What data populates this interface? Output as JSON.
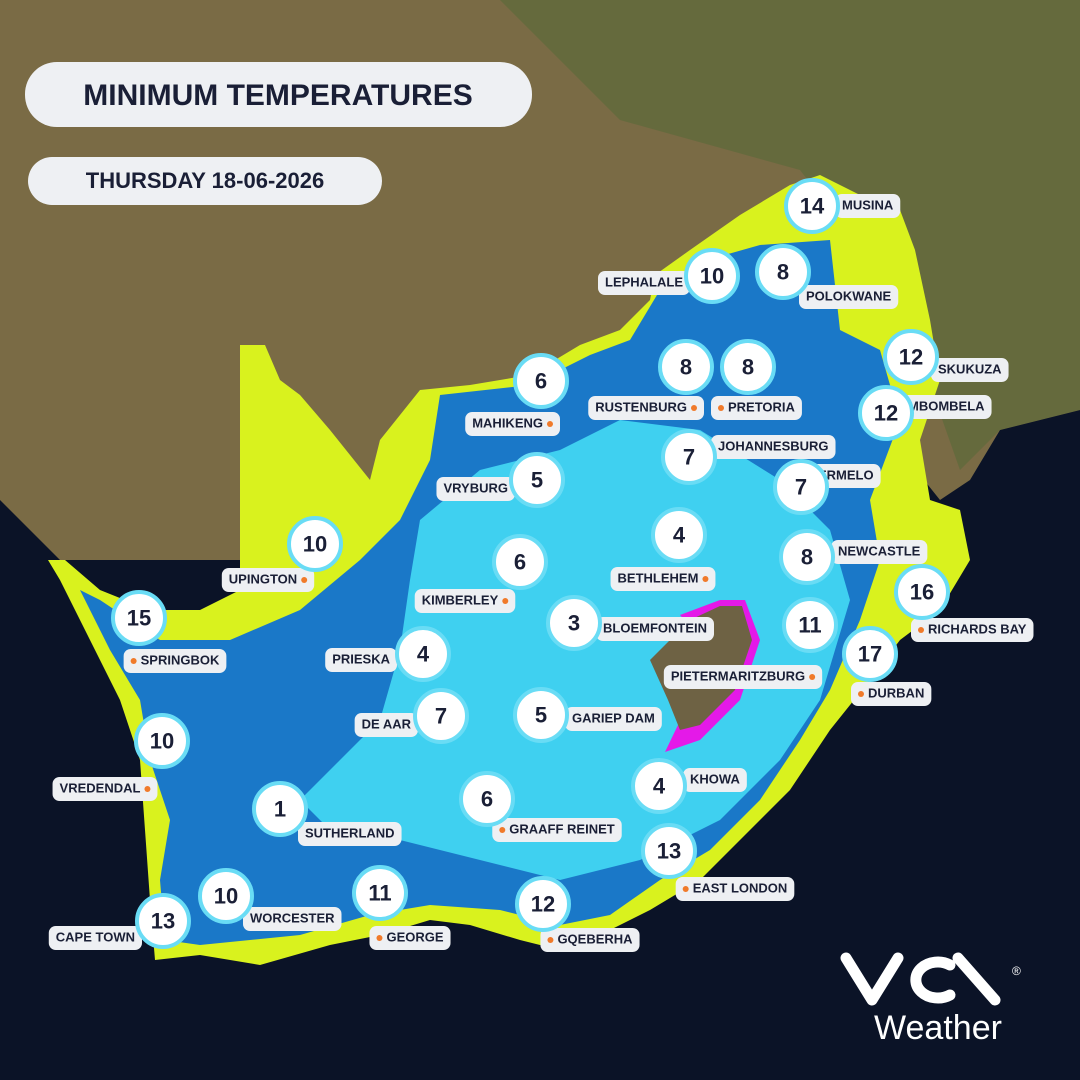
{
  "header": {
    "title": "MINIMUM TEMPERATURES",
    "date": "THURSDAY 18-06-2026"
  },
  "cities": [
    {
      "name": "MUSINA",
      "temp": 14
    },
    {
      "name": "LEPHALALE",
      "temp": 10
    },
    {
      "name": "POLOKWANE",
      "temp": 8
    },
    {
      "name": "MAHIKENG",
      "temp": 6
    },
    {
      "name": "RUSTENBURG",
      "temp": 8
    },
    {
      "name": "PRETORIA",
      "temp": 8
    },
    {
      "name": "SKUKUZA",
      "temp": 12
    },
    {
      "name": "MBOMBELA",
      "temp": 12
    },
    {
      "name": "JOHANNESBURG",
      "temp": 7
    },
    {
      "name": "ERMELO",
      "temp": 7
    },
    {
      "name": "VRYBURG",
      "temp": 5
    },
    {
      "name": "BETHLEHEM",
      "temp": 4
    },
    {
      "name": "NEWCASTLE",
      "temp": 8
    },
    {
      "name": "UPINGTON",
      "temp": 10
    },
    {
      "name": "KIMBERLEY",
      "temp": 6
    },
    {
      "name": "RICHARDS BAY",
      "temp": 16
    },
    {
      "name": "SPRINGBOK",
      "temp": 15
    },
    {
      "name": "BLOEMFONTEIN",
      "temp": 3
    },
    {
      "name": "PIETERMARITZBURG",
      "temp": 11
    },
    {
      "name": "DURBAN",
      "temp": 17
    },
    {
      "name": "PRIESKA",
      "temp": 4
    },
    {
      "name": "DE AAR",
      "temp": 7
    },
    {
      "name": "GARIEP DAM",
      "temp": 5
    },
    {
      "name": "VREDENDAL",
      "temp": 10
    },
    {
      "name": "KHOWA",
      "temp": 4
    },
    {
      "name": "SUTHERLAND",
      "temp": 1
    },
    {
      "name": "GRAAFF REINET",
      "temp": 6
    },
    {
      "name": "EAST LONDON",
      "temp": 13
    },
    {
      "name": "WORCESTER",
      "temp": 10
    },
    {
      "name": "GEORGE",
      "temp": 11
    },
    {
      "name": "GQEBERHA",
      "temp": 12
    },
    {
      "name": "CAPE TOWN",
      "temp": 13
    }
  ],
  "logo": {
    "text": "Weather",
    "mark": "®"
  }
}
